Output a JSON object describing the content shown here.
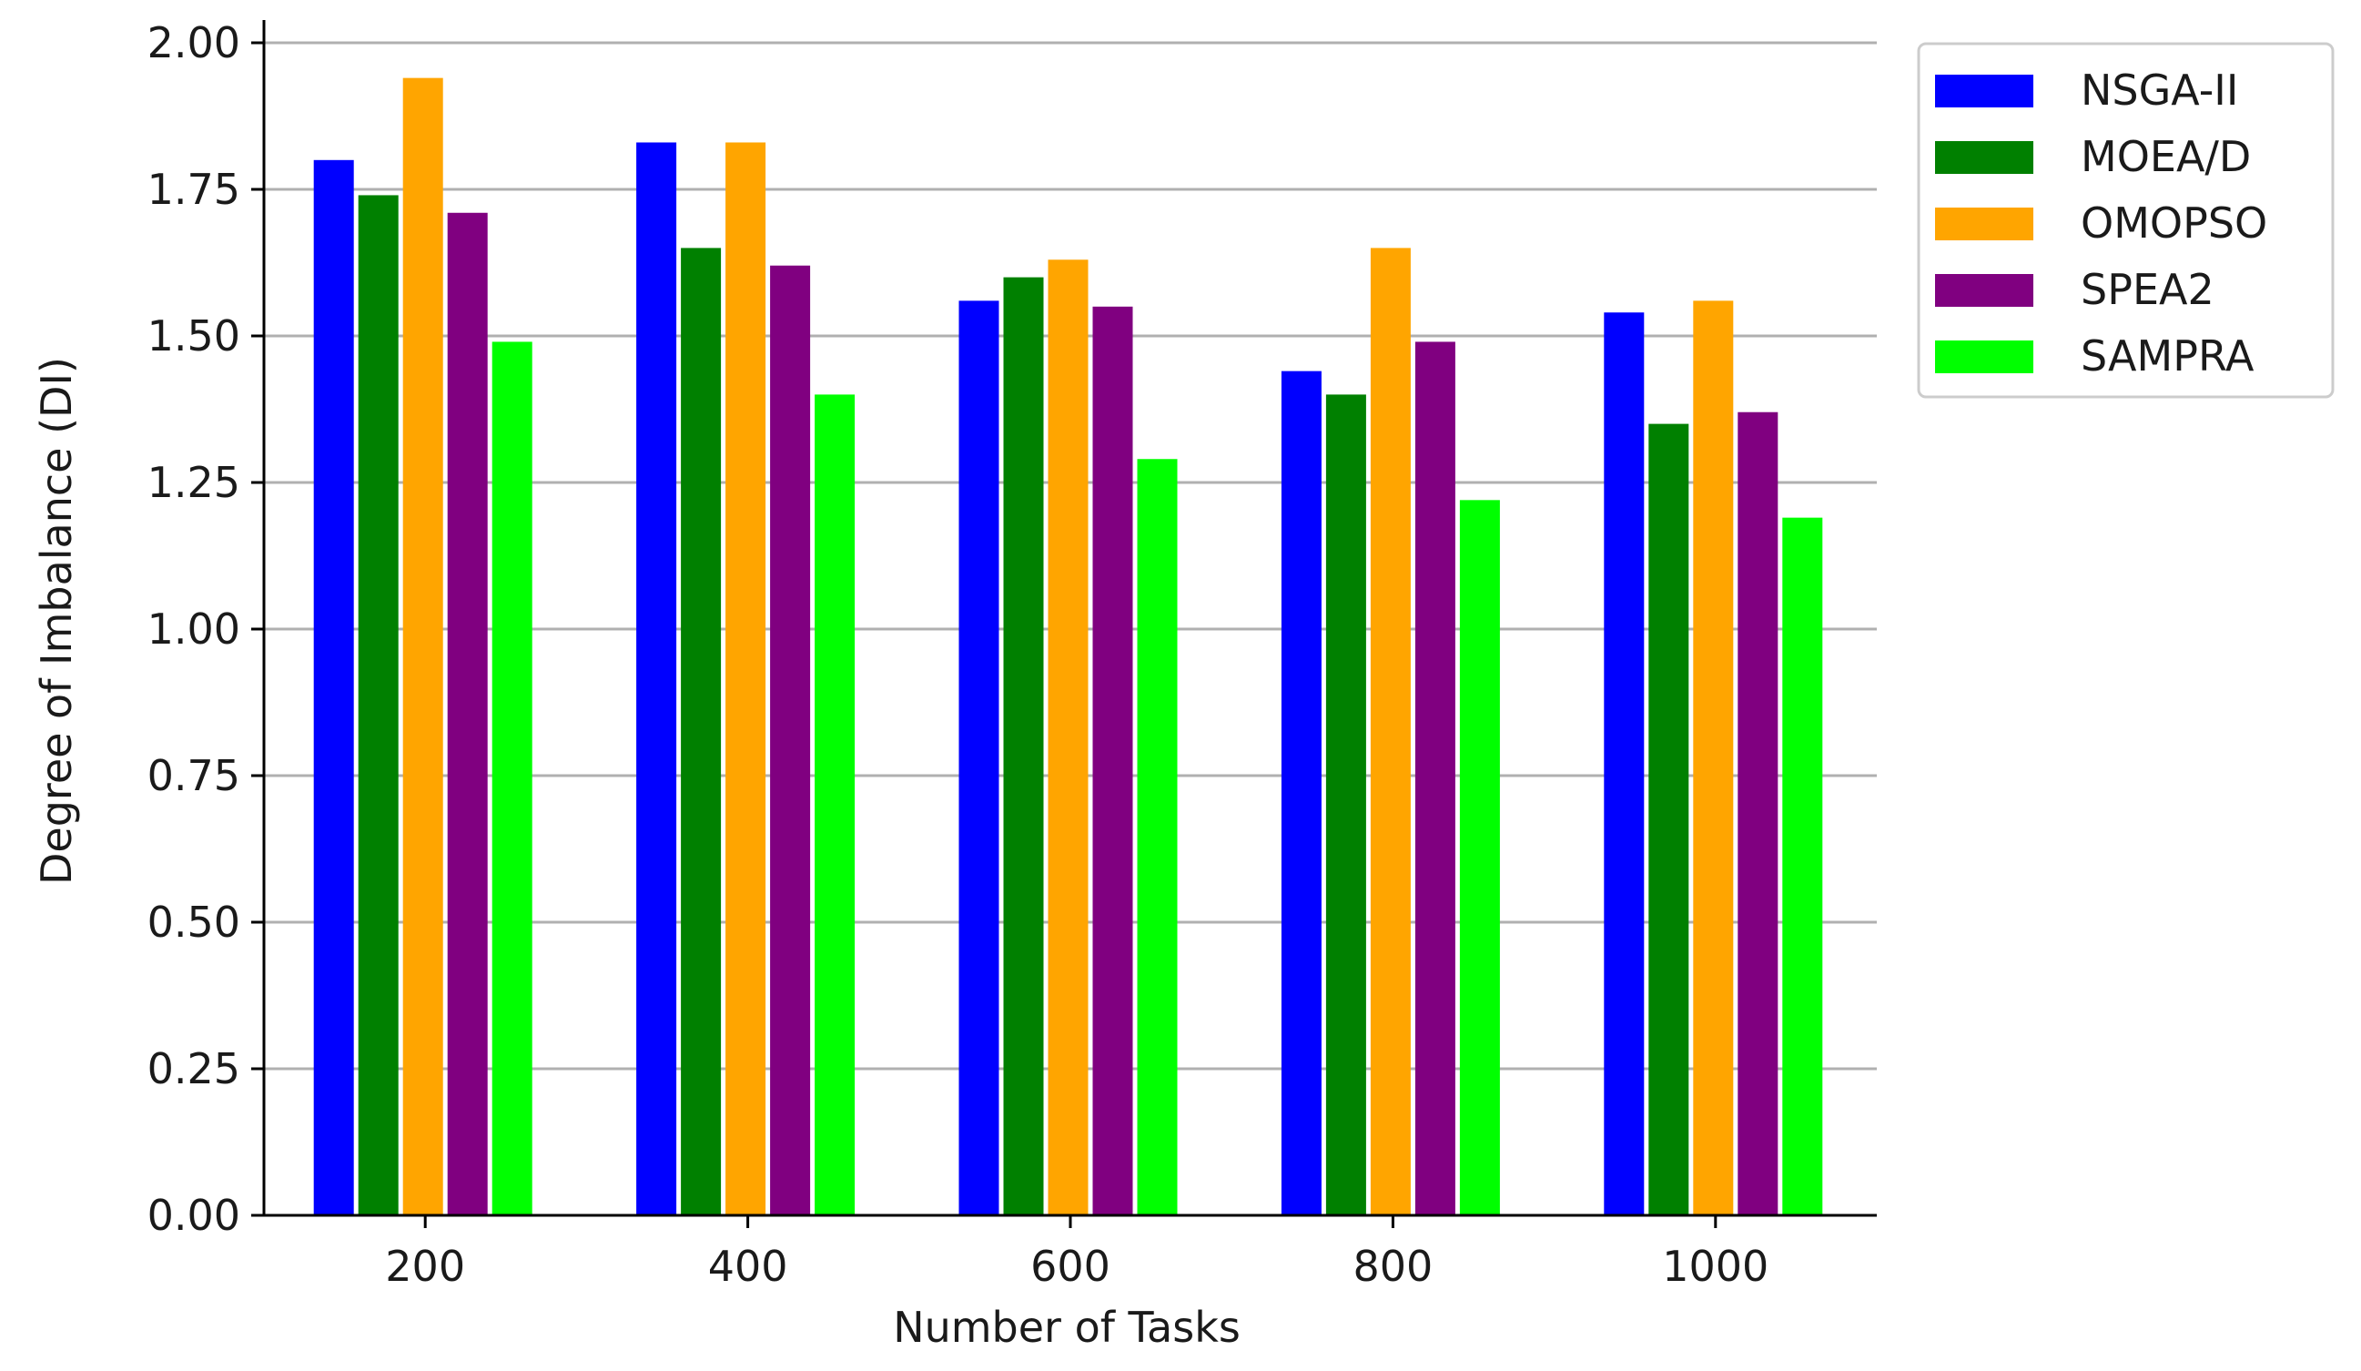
{
  "chart_data": {
    "type": "bar",
    "xlabel": "Number of Tasks",
    "ylabel": "Degree of Imbalance (DI)",
    "ylim": [
      0,
      2.0
    ],
    "yticks": [
      "0.00",
      "0.25",
      "0.50",
      "0.75",
      "1.00",
      "1.25",
      "1.50",
      "1.75",
      "2.00"
    ],
    "categories": [
      "200",
      "400",
      "600",
      "800",
      "1000"
    ],
    "grid": "horizontal",
    "legend_position": "outside-top-right",
    "series": [
      {
        "name": "NSGA-II",
        "color": "#0000ff",
        "values": [
          1.8,
          1.83,
          1.56,
          1.44,
          1.54
        ]
      },
      {
        "name": "MOEA/D",
        "color": "#008000",
        "values": [
          1.74,
          1.65,
          1.6,
          1.4,
          1.35
        ]
      },
      {
        "name": "OMOPSO",
        "color": "#ffa500",
        "values": [
          1.94,
          1.83,
          1.63,
          1.65,
          1.56
        ]
      },
      {
        "name": "SPEA2",
        "color": "#800080",
        "values": [
          1.71,
          1.62,
          1.55,
          1.49,
          1.37
        ]
      },
      {
        "name": "SAMPRA",
        "color": "#00ff00",
        "values": [
          1.49,
          1.4,
          1.29,
          1.22,
          1.19
        ]
      }
    ]
  }
}
